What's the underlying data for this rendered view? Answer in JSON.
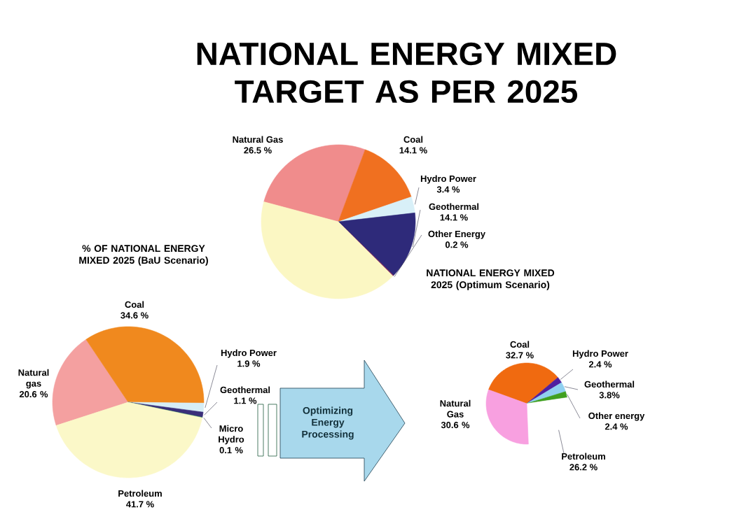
{
  "chart_data": [
    {
      "type": "pie",
      "title": "NATIONAL ENERGY MIXED TARGET AS PER 2025",
      "categories": [
        "Natural Gas",
        "Coal",
        "Hydro Power",
        "Geothermal",
        "Other Energy",
        null
      ],
      "values": [
        26.5,
        14.1,
        3.4,
        14.1,
        0.2,
        41.7
      ],
      "value_labels": [
        "26.5 %",
        "14.1 %",
        "3.4 %",
        "14.1 %",
        "0.2 %",
        null
      ],
      "colors": [
        "#f08c8c",
        "#f07020",
        "#d8f0f8",
        "#2e2a7a",
        "#7a1f5a",
        "#fbf7c3"
      ]
    },
    {
      "type": "pie",
      "title": "% OF NATIONAL ENERGY MIXED 2025 (BaU Scenario)",
      "categories": [
        "Natural gas",
        "Coal",
        "Hydro Power",
        "Geothermal",
        "Micro Hydro",
        "Petroleum"
      ],
      "values": [
        20.6,
        34.6,
        1.9,
        1.1,
        0.1,
        41.7
      ],
      "value_labels": [
        "20.6 %",
        "34.6 %",
        "1.9 %",
        "1.1 %",
        "0.1 %",
        "41.7 %"
      ],
      "colors": [
        "#f4a0a0",
        "#f0891e",
        "#d6eef6",
        "#3a2f7a",
        "#2e7d5a",
        "#fbf8c8"
      ],
      "annotations": [
        "Optimizing Energy Processing"
      ]
    },
    {
      "type": "pie",
      "title": "NATIONAL ENERGY MIXED 2025 (Optimum Scenario)",
      "categories": [
        "Coal",
        "Hydro Power",
        "Geothermal",
        "Other energy",
        "Petroleum",
        "Natural Gas"
      ],
      "values": [
        32.7,
        2.4,
        3.8,
        2.4,
        26.2,
        30.6
      ],
      "value_labels": [
        "32.7 %",
        "2.4 %",
        "3.8%",
        "2.4 %",
        "26.2 %",
        "30.6 %"
      ],
      "colors": [
        "#f06a10",
        "#5020a0",
        "#90d0f0",
        "#40a020",
        "#ffffff",
        "#f8a0e0"
      ]
    }
  ]
}
